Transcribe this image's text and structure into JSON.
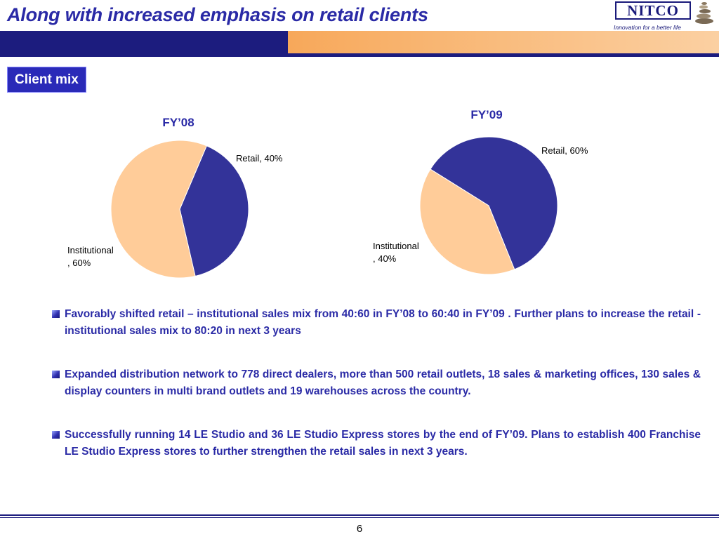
{
  "header": {
    "title": "Along with increased emphasis on retail clients",
    "logo_text": "NITCO",
    "logo_tagline": "Innovation for a better life",
    "colors": {
      "primary": "#1c1c7e",
      "accent": "#f7a85a"
    }
  },
  "section_label": "Client mix",
  "chart_data": [
    {
      "type": "pie",
      "title": "FY’08",
      "slices": [
        {
          "label": "Retail, 40%",
          "name": "Retail",
          "value": 40,
          "color": "#333399"
        },
        {
          "label": "Institutional\n, 60%",
          "name": "Institutional",
          "value": 60,
          "color": "#ffcc99"
        }
      ]
    },
    {
      "type": "pie",
      "title": "FY’09",
      "slices": [
        {
          "label": "Retail, 60%",
          "name": "Retail",
          "value": 60,
          "color": "#333399"
        },
        {
          "label": "Institutional\n, 40%",
          "name": "Institutional",
          "value": 40,
          "color": "#ffcc99"
        }
      ]
    }
  ],
  "bullets": [
    "Favorably shifted retail – institutional sales mix from 40:60 in FY’08 to 60:40 in FY’09 . Further plans to increase the retail - institutional sales mix to 80:20 in next 3 years",
    "Expanded distribution network to 778 direct dealers, more than 500 retail outlets, 18 sales & marketing offices, 130 sales & display counters in multi brand outlets and 19 warehouses across the country.",
    "Successfully running 14 LE Studio and 36 LE Studio Express stores by the end of FY’09. Plans to establish  400 Franchise LE Studio Express stores to further strengthen the retail sales in next 3 years."
  ],
  "footer": {
    "page_number": "6"
  }
}
